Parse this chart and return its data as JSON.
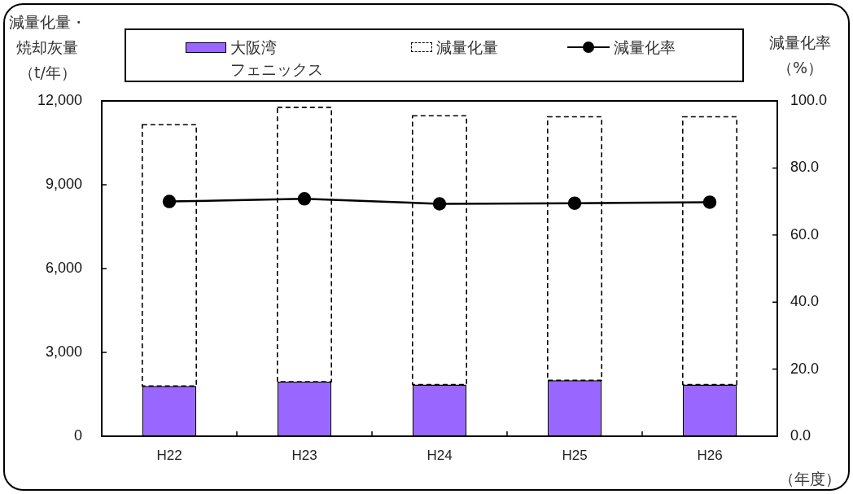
{
  "chart_data": {
    "type": "bar",
    "categories": [
      "H22",
      "H23",
      "H24",
      "H25",
      "H26"
    ],
    "series": [
      {
        "name": "大阪湾フェニックス",
        "color": "#9966ff",
        "values": [
          1800,
          1950,
          1850,
          2000,
          1850
        ]
      },
      {
        "name": "減量化量",
        "color": "#000000",
        "line_style": "dashed",
        "values": [
          9350,
          9820,
          9620,
          9430,
          9580
        ]
      },
      {
        "name": "減量化率",
        "type": "line",
        "axis": "y2",
        "color": "#000000",
        "marker": "circle",
        "values": [
          70.0,
          70.8,
          69.3,
          69.5,
          69.8
        ]
      }
    ],
    "stacked": true,
    "legend": "top",
    "ylabel": "減量化量・焼却灰量（t/年）",
    "y2label": "減量化率（%）",
    "xlabel": "（年度）",
    "ylim": [
      0,
      12000
    ],
    "yticks": [
      {
        "value": 0,
        "label": "0"
      },
      {
        "value": 3000,
        "label": "3,000"
      },
      {
        "value": 6000,
        "label": "6,000"
      },
      {
        "value": 9000,
        "label": "9,000"
      },
      {
        "value": 12000,
        "label": "12,000"
      }
    ],
    "y2lim": [
      0,
      100
    ],
    "y2ticks": [
      {
        "value": 0,
        "label": "0.0"
      },
      {
        "value": 20,
        "label": "20.0"
      },
      {
        "value": 40,
        "label": "40.0"
      },
      {
        "value": 60,
        "label": "60.0"
      },
      {
        "value": 80,
        "label": "80.0"
      },
      {
        "value": 100,
        "label": "100.0"
      }
    ]
  }
}
